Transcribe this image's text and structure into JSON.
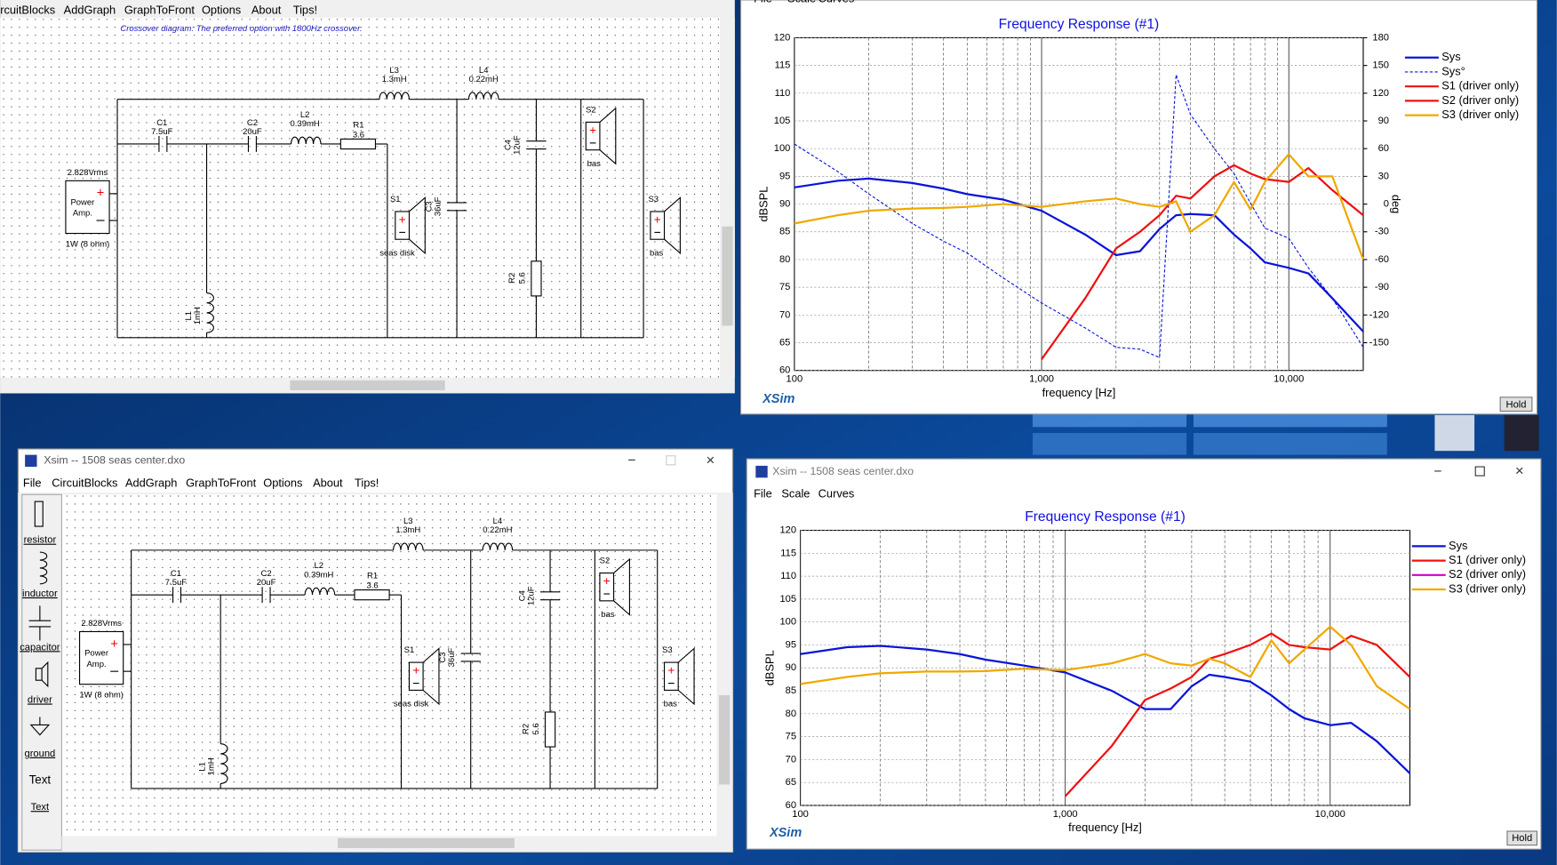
{
  "top_window": {
    "menu": [
      "rcuitBlocks",
      "AddGraph",
      "GraphToFront",
      "Options",
      "About",
      "Tips!"
    ],
    "caption": "Crossover diagram: The preferred option with 1800Hz crossover.",
    "circuit": [
      "L3",
      "1.3mH",
      "L4",
      "0.22mH",
      "C1",
      "7.5uF",
      "C2",
      "20uF",
      "L2",
      "0.39mH",
      "R1",
      "3.6",
      "2.828Vrms",
      "Power",
      "Amp.",
      "1W (8 ohm)",
      "S1",
      "seas disk",
      "C3",
      "36uF",
      "C4",
      "12uF",
      "S2",
      "bas",
      "S3",
      "bas",
      "R2",
      "5.6",
      "L1",
      "1mH"
    ]
  },
  "bottom_window": {
    "title": "Xsim -- 1508 seas center.dxo",
    "menu": [
      "File",
      "CircuitBlocks",
      "AddGraph",
      "GraphToFront",
      "Options",
      "About",
      "Tips!"
    ],
    "toolbox": [
      "resistor",
      "inductor",
      "capacitor",
      "driver",
      "ground",
      "Text",
      "Text"
    ],
    "circuit": [
      "L3",
      "1.3mH",
      "L4",
      "0.22mH",
      "C1",
      "7.5uF",
      "C2",
      "20uF",
      "L2",
      "0.39mH",
      "R1",
      "3.6",
      "2.828Vrms",
      "Power",
      "Amp.",
      "1W (8 ohm)",
      "S1",
      "seas disk",
      "C3",
      "36uF",
      "C4",
      "12uF",
      "S2",
      "bas",
      "S3",
      "bas",
      "R2",
      "5.6",
      "L1",
      "1mH"
    ]
  },
  "graph_top": {
    "menu": [
      "File",
      "Scale",
      "Curves"
    ],
    "brand": "XSim",
    "button": "Hold"
  },
  "graph_bottom": {
    "title": "Xsim -- 1508 seas center.dxo",
    "menu": [
      "File",
      "Scale",
      "Curves"
    ],
    "brand": "XSim",
    "button": "Hold"
  },
  "chart_data": [
    {
      "type": "line",
      "title": "Frequency Response (#1)",
      "x_label": "frequency [Hz]",
      "y_label": "dBSPL",
      "y2_label": "deg",
      "xscale": "log",
      "xlim": [
        100,
        20000
      ],
      "xticks": [
        100,
        {
          "value": 1000,
          "label": "1,000"
        },
        {
          "value": 10000,
          "label": "10,000"
        }
      ],
      "ylim": [
        60,
        120
      ],
      "yticks": [
        60,
        65,
        70,
        75,
        80,
        85,
        90,
        95,
        100,
        105,
        110,
        115,
        120
      ],
      "y2lim": [
        -180,
        180
      ],
      "y2ticks": [
        -150,
        -120,
        -90,
        -60,
        -30,
        0,
        30,
        60,
        90,
        120,
        150,
        180
      ],
      "grid": true,
      "legend": "right",
      "x": [
        100,
        150,
        200,
        300,
        400,
        500,
        700,
        1000,
        1500,
        2000,
        2500,
        3000,
        3500,
        4000,
        5000,
        6000,
        7000,
        8000,
        10000,
        12000,
        15000,
        20000
      ],
      "series": [
        {
          "name": "Sys",
          "color": "#0a14d8",
          "width": 2,
          "values": [
            93,
            94.2,
            94.6,
            93.8,
            92.8,
            91.8,
            90.8,
            88.8,
            84.5,
            80.8,
            81.5,
            85.5,
            88,
            88.2,
            88,
            84.5,
            82,
            79.5,
            78.5,
            77.5,
            73,
            67
          ]
        },
        {
          "name": "Sys°",
          "color": "#0a14d8",
          "width": 1,
          "dash": true,
          "axis": "y2",
          "values": [
            65,
            35,
            11,
            -21,
            -40,
            -53,
            -80,
            -107,
            -134,
            -155,
            -157,
            -166,
            140,
            97,
            60,
            33,
            1,
            -26,
            -37,
            -69,
            -102,
            -155
          ]
        },
        {
          "name": "S1 (driver only)",
          "color": "#ee1111",
          "width": 2,
          "values": [
            null,
            null,
            null,
            null,
            null,
            null,
            null,
            62,
            73,
            82,
            85,
            88,
            91.5,
            91,
            95,
            97,
            95.5,
            94.5,
            94,
            96.5,
            92.5,
            88
          ]
        },
        {
          "name": "S2 (driver only)",
          "color": "#ee1111",
          "width": 2,
          "values": [
            null,
            null,
            null,
            null,
            null,
            null,
            null,
            null,
            null,
            null,
            null,
            null,
            null,
            null,
            null,
            null,
            null,
            null,
            null,
            null,
            null,
            null
          ]
        },
        {
          "name": "S3 (driver only)",
          "color": "#f0a800",
          "width": 2,
          "values": [
            86.5,
            88,
            88.8,
            89.2,
            89.3,
            89.5,
            90,
            89.5,
            90.5,
            91,
            90,
            89.5,
            90.5,
            85,
            88,
            94,
            89,
            94,
            99,
            95,
            95,
            80
          ]
        }
      ]
    },
    {
      "type": "line",
      "title": "Frequency Response (#1)",
      "x_label": "frequency [Hz]",
      "y_label": "dBSPL",
      "xscale": "log",
      "xlim": [
        100,
        20000
      ],
      "xticks": [
        100,
        {
          "value": 1000,
          "label": "1,000"
        },
        {
          "value": 10000,
          "label": "10,000"
        }
      ],
      "ylim": [
        60,
        120
      ],
      "yticks": [
        60,
        65,
        70,
        75,
        80,
        85,
        90,
        95,
        100,
        105,
        110,
        115,
        120
      ],
      "grid": true,
      "legend": "right",
      "x": [
        100,
        150,
        200,
        300,
        400,
        500,
        700,
        1000,
        1500,
        2000,
        2500,
        3000,
        3500,
        4000,
        5000,
        6000,
        7000,
        8000,
        10000,
        12000,
        15000,
        20000
      ],
      "series": [
        {
          "name": "Sys",
          "color": "#0a14d8",
          "width": 2,
          "values": [
            93,
            94.5,
            94.8,
            94,
            93,
            91.8,
            90.5,
            89,
            85,
            81,
            81,
            86,
            88.5,
            88,
            87,
            84,
            81,
            79,
            77.5,
            78,
            74,
            67
          ]
        },
        {
          "name": "S1 (driver only)",
          "color": "#ee1111",
          "width": 2,
          "values": [
            null,
            null,
            null,
            null,
            null,
            null,
            null,
            62,
            73,
            83,
            85.5,
            88,
            92,
            93,
            95,
            97.5,
            95,
            94.5,
            94,
            97,
            95,
            88
          ]
        },
        {
          "name": "S2 (driver only)",
          "color": "#cc00cc",
          "width": 2,
          "values": [
            null,
            null,
            null,
            null,
            null,
            null,
            null,
            null,
            null,
            null,
            null,
            null,
            null,
            null,
            null,
            null,
            null,
            null,
            null,
            null,
            null,
            null
          ]
        },
        {
          "name": "S3 (driver only)",
          "color": "#f0a800",
          "width": 2,
          "values": [
            86.5,
            88,
            88.8,
            89.2,
            89.2,
            89.3,
            89.8,
            89.5,
            91,
            93,
            91,
            90.5,
            92,
            91,
            88,
            96,
            91,
            94,
            99,
            95,
            86,
            81
          ]
        }
      ]
    }
  ]
}
